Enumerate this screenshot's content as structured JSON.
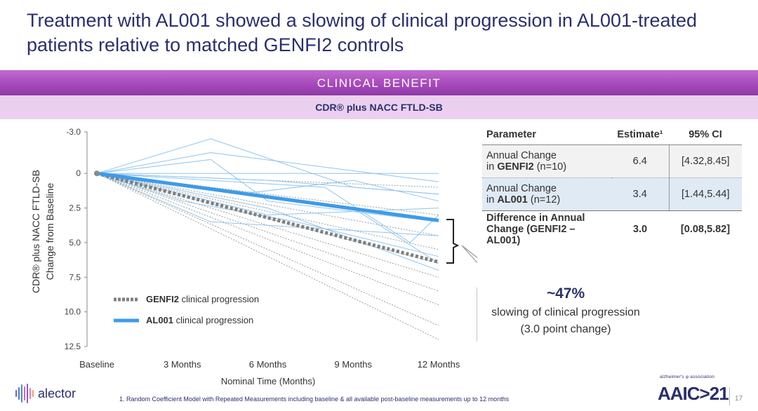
{
  "title": "Treatment with AL001 showed a slowing of clinical progression in AL001-treated patients relative to matched GENFI2 controls",
  "banner": "CLINICAL BENEFIT",
  "subbanner": "CDR® plus NACC FTLD-SB",
  "chart_data": {
    "type": "line",
    "ylabel": "CDR® plus NACC FTLD-SB Change from Baseline",
    "xlabel": "Nominal Time (Months)",
    "categories": [
      "Baseline",
      "3 Months",
      "6 Months",
      "9 Months",
      "12 Months"
    ],
    "x_months": [
      0,
      3,
      6,
      9,
      12
    ],
    "ylim": [
      -3.0,
      12.5
    ],
    "y_inverted": true,
    "y_ticks": [
      "-3.0",
      "0",
      "2.5",
      "5.0",
      "7.5",
      "10.0",
      "12.5"
    ],
    "grid": false,
    "legend": "bottom-left",
    "series": [
      {
        "name": "GENFI2 clinical progression",
        "color": "#7f7f7f",
        "style": "dashed-thick",
        "x": [
          0,
          12
        ],
        "y": [
          0,
          6.4
        ]
      },
      {
        "name": "AL001 clinical progression",
        "color": "#3d9be9",
        "style": "solid-thick",
        "x": [
          0,
          12
        ],
        "y": [
          0,
          3.4
        ]
      }
    ],
    "al001_individual": [
      {
        "x": [
          0,
          4,
          9,
          12
        ],
        "y": [
          0,
          -2.5,
          1.0,
          1.5
        ]
      },
      {
        "x": [
          0,
          4,
          12
        ],
        "y": [
          0,
          -1.5,
          0.6
        ]
      },
      {
        "x": [
          0,
          6,
          9,
          12
        ],
        "y": [
          0,
          0,
          0,
          0
        ]
      },
      {
        "x": [
          0,
          6,
          12
        ],
        "y": [
          0,
          0.5,
          1.5
        ]
      },
      {
        "x": [
          0,
          9,
          12
        ],
        "y": [
          0,
          2.5,
          6.5
        ]
      },
      {
        "x": [
          0,
          6,
          12
        ],
        "y": [
          0,
          3.0,
          2.5
        ]
      },
      {
        "x": [
          0,
          4,
          12
        ],
        "y": [
          0,
          3.5,
          4.5
        ]
      },
      {
        "x": [
          0,
          3,
          7,
          12
        ],
        "y": [
          0,
          2.0,
          3.5,
          6.0
        ]
      },
      {
        "x": [
          0,
          5,
          9,
          12
        ],
        "y": [
          0,
          1.5,
          0.5,
          2.0
        ]
      },
      {
        "x": [
          0,
          4,
          6,
          12
        ],
        "y": [
          0,
          -1.0,
          2.0,
          3.5
        ]
      },
      {
        "x": [
          0,
          8,
          11,
          12
        ],
        "y": [
          0,
          1.0,
          5.0,
          3.0
        ]
      },
      {
        "x": [
          0,
          6,
          12
        ],
        "y": [
          0,
          2.5,
          7.0
        ]
      }
    ],
    "genfi2_individual": [
      {
        "x": [
          0,
          12
        ],
        "y": [
          0,
          1.0
        ]
      },
      {
        "x": [
          0,
          12
        ],
        "y": [
          0,
          3.0
        ]
      },
      {
        "x": [
          0,
          12
        ],
        "y": [
          0,
          4.5
        ]
      },
      {
        "x": [
          0,
          12
        ],
        "y": [
          0,
          5.5
        ]
      },
      {
        "x": [
          0,
          12
        ],
        "y": [
          0,
          6.5
        ]
      },
      {
        "x": [
          0,
          12
        ],
        "y": [
          0,
          7.5
        ]
      },
      {
        "x": [
          0,
          12
        ],
        "y": [
          0,
          8.5
        ]
      },
      {
        "x": [
          0,
          12
        ],
        "y": [
          0,
          9.5
        ]
      },
      {
        "x": [
          0,
          12
        ],
        "y": [
          0,
          11.0
        ]
      },
      {
        "x": [
          0,
          12
        ],
        "y": [
          0,
          12.0
        ]
      }
    ]
  },
  "legend": {
    "genfi2_bold": "GENFI2",
    "genfi2_rest": " clinical progression",
    "al001_bold": "AL001",
    "al001_rest": " clinical progression"
  },
  "table": {
    "headers": [
      "Parameter",
      "Estimate¹",
      "95% CI"
    ],
    "rows": [
      {
        "label_line1": "Annual Change",
        "label_line2_pre": "in ",
        "label_line2_bold": "GENFI2",
        "label_line2_post": " (n=10)",
        "estimate": "6.4",
        "ci": "[4.32,8.45]"
      },
      {
        "label_line1": "Annual Change",
        "label_line2_pre": "in ",
        "label_line2_bold": "AL001",
        "label_line2_post": " (n=12)",
        "estimate": "3.4",
        "ci": "[1.44,5.44]"
      },
      {
        "label_line1": "Difference in Annual",
        "label_line2": "Change (GENFI2 – AL001)",
        "estimate": "3.0",
        "ci": "[0.08,5.82]"
      }
    ]
  },
  "callout": {
    "big": "~47%",
    "line1": "slowing of clinical progression",
    "line2": "(3.0 point change)"
  },
  "footer": {
    "brand": "alector",
    "footnote": "1. Random Coefficient Model with Repeated Measurements including baseline & all available post-baseline measurements up to 12 months",
    "conference_small": "alzheimer's φ association",
    "conference": "AAIC>21",
    "page": "17"
  }
}
